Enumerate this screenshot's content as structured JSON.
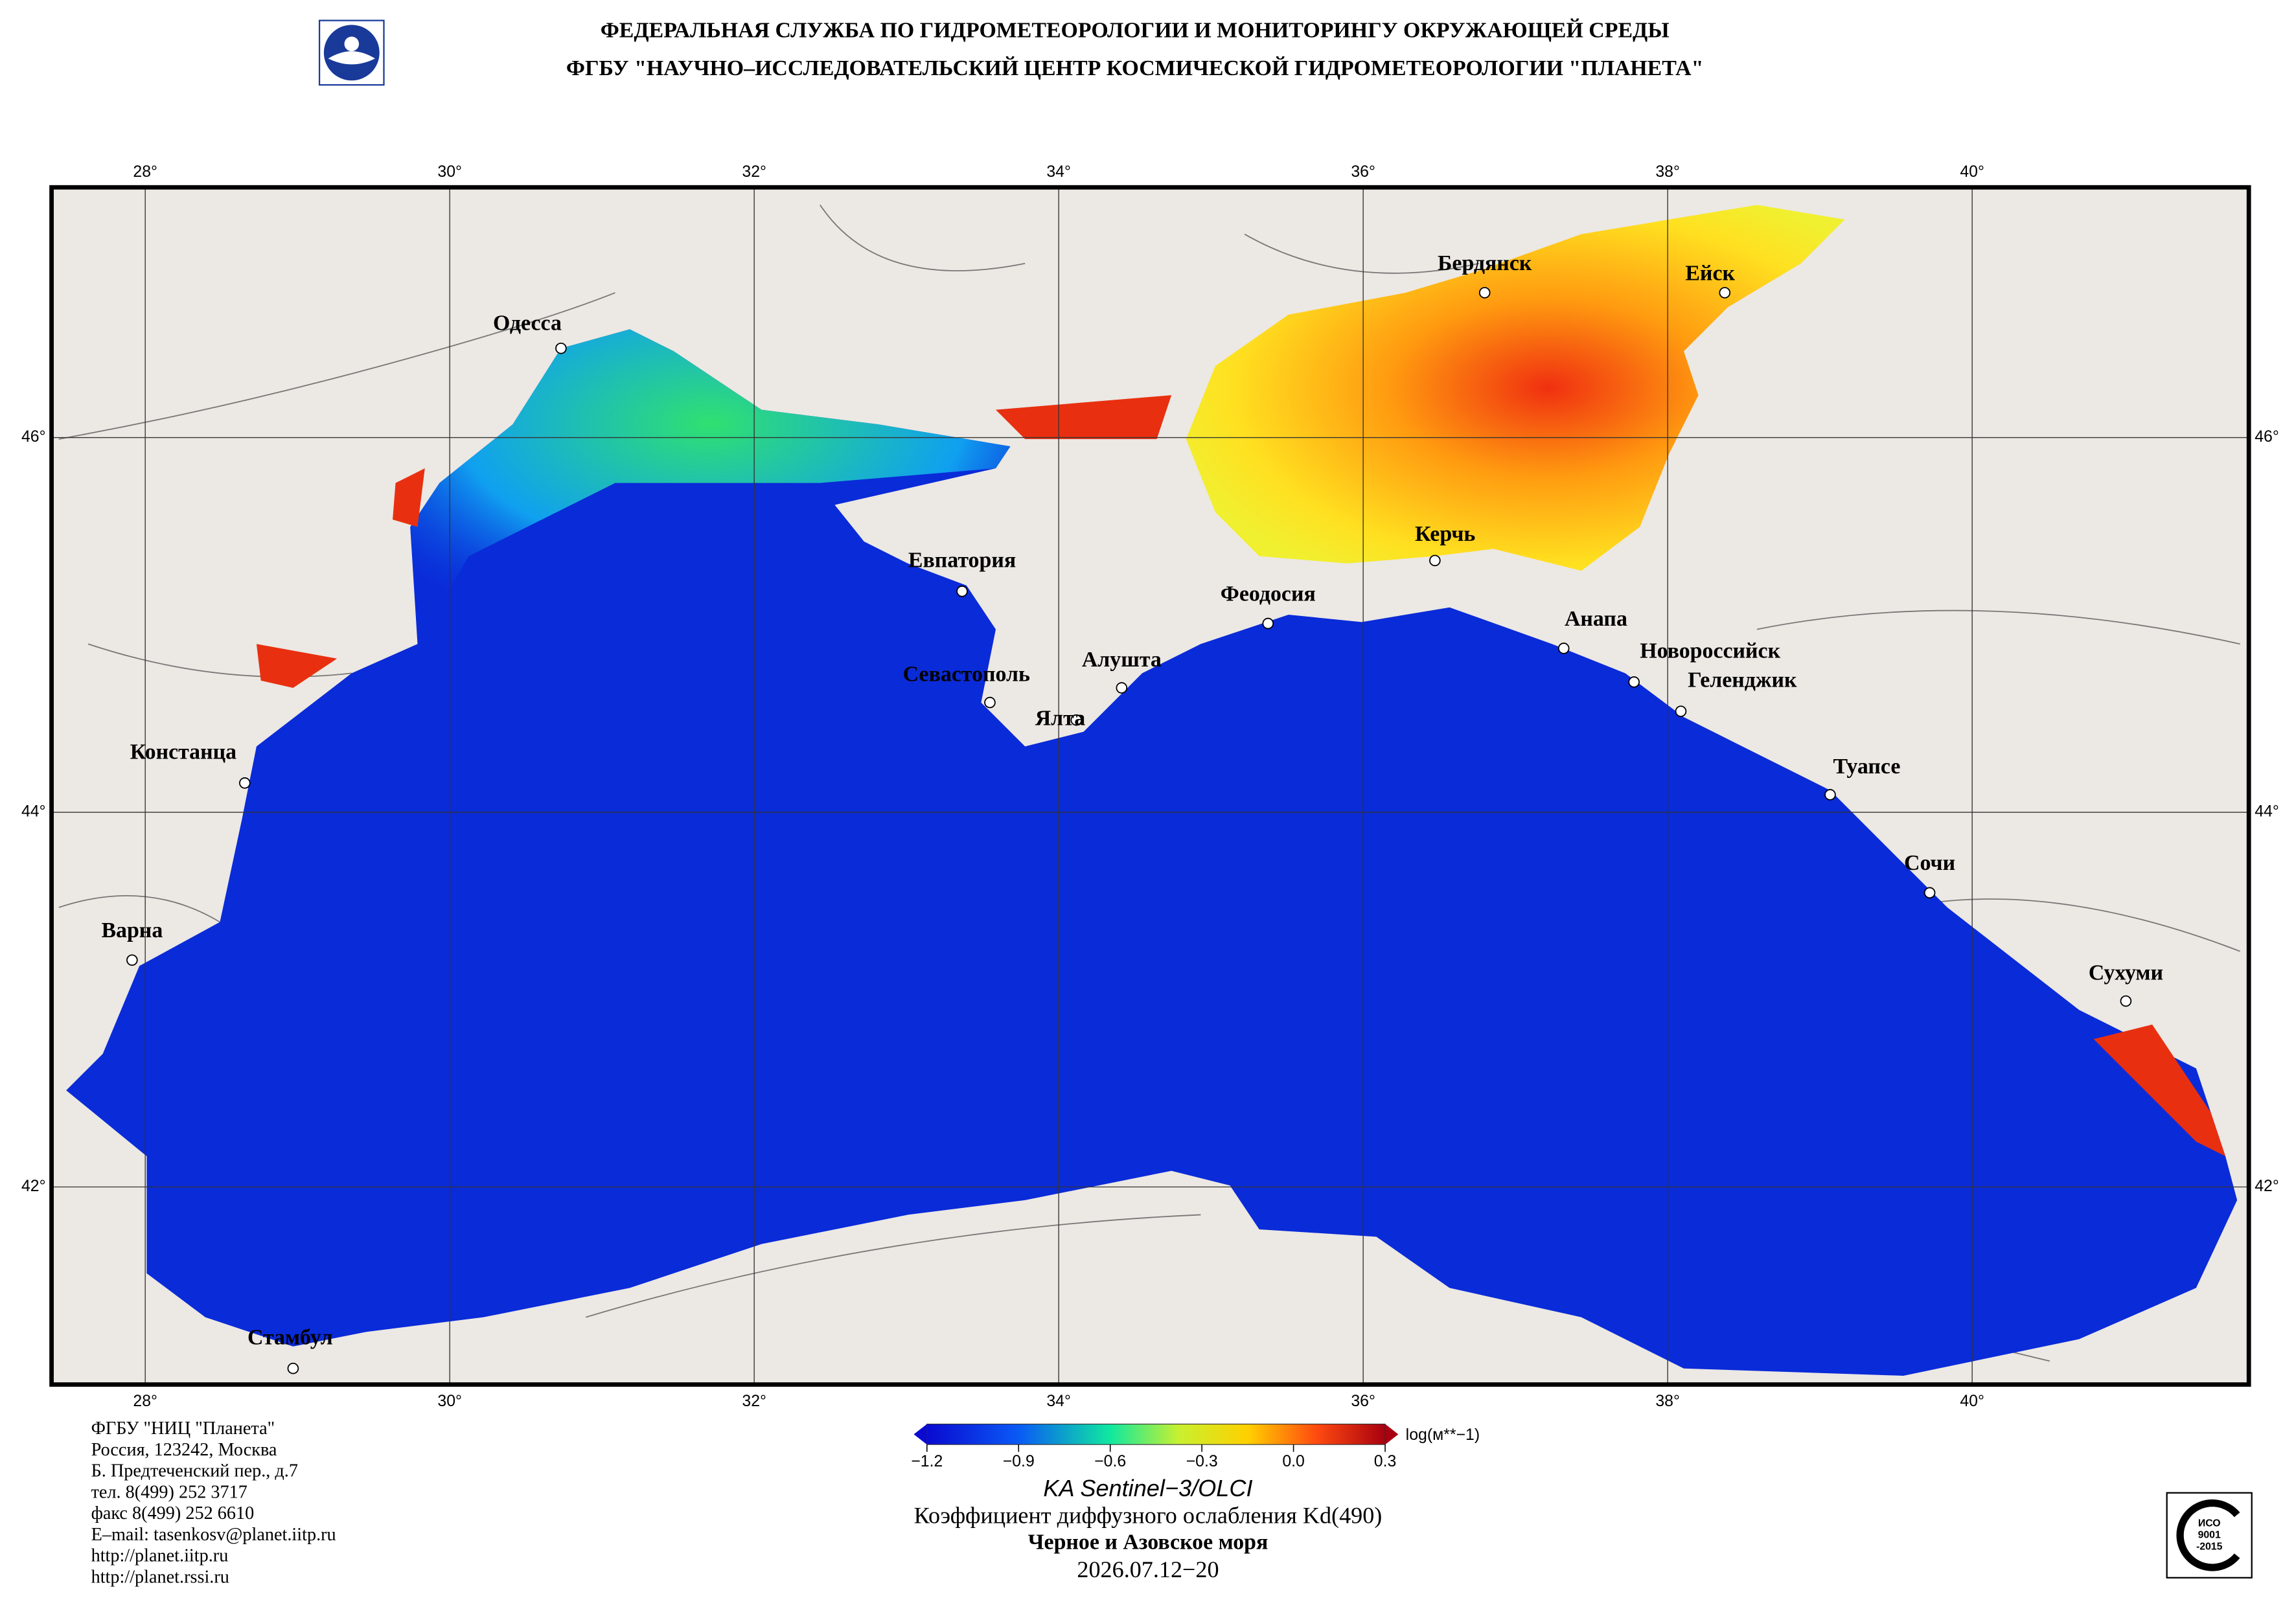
{
  "header": {
    "line1": "ФЕДЕРАЛЬНАЯ СЛУЖБА ПО ГИДРОМЕТЕОРОЛОГИИ И МОНИТОРИНГУ ОКРУЖАЮЩЕЙ СРЕДЫ",
    "line2": "ФГБУ \"НАУЧНО–ИССЛЕДОВАТЕЛЬСКИЙ ЦЕНТР КОСМИЧЕСКОЙ ГИДРОМЕТЕОРОЛОГИИ \"ПЛАНЕТА\""
  },
  "map": {
    "lon_ticks": [
      {
        "value": 28,
        "label": "28°"
      },
      {
        "value": 30,
        "label": "30°"
      },
      {
        "value": 32,
        "label": "32°"
      },
      {
        "value": 34,
        "label": "34°"
      },
      {
        "value": 36,
        "label": "36°"
      },
      {
        "value": 38,
        "label": "38°"
      },
      {
        "value": 40,
        "label": "40°"
      }
    ],
    "lat_ticks": [
      {
        "value": 46,
        "label": "46°"
      },
      {
        "value": 44,
        "label": "44°"
      },
      {
        "value": 42,
        "label": "42°"
      }
    ],
    "cities": [
      "Одесса",
      "Бердянск",
      "Ейск",
      "Евпатория",
      "Керчь",
      "Феодосия",
      "Анапа",
      "Новороссийск",
      "Геленджик",
      "Севастополь",
      "Алушта",
      "Ялта",
      "Констанца",
      "Туапсе",
      "Сочи",
      "Варна",
      "Сухуми",
      "Стамбул"
    ]
  },
  "colorbar": {
    "unit": "log(м**−1)",
    "ticks": [
      {
        "value": -1.2,
        "label": "−1.2"
      },
      {
        "value": -0.9,
        "label": "−0.9"
      },
      {
        "value": -0.6,
        "label": "−0.6"
      },
      {
        "value": -0.3,
        "label": "−0.3"
      },
      {
        "value": 0,
        "label": "0.0"
      },
      0.3
    ],
    "lim": [
      -1.2,
      0.3
    ]
  },
  "footer": {
    "address": [
      "ФГБУ \"НИЦ \"Планета\"",
      "Россия, 123242, Москва",
      "Б. Предтеченский пер., д.7",
      "тел. 8(499) 252 3717",
      "факс 8(499) 252 6610",
      "E–mail: tasenkosv@planet.iitp.ru",
      "http://planet.iitp.ru",
      "http://planet.rssi.ru"
    ],
    "satellite": "KA Sentinel−3/OLCI",
    "product": "Коэффициент диффузного ослабления Kd(490)",
    "region": "Черное и Азовское моря",
    "period": "2026.07.12−20",
    "iso": [
      "ИСО",
      "9001",
      "-2015"
    ]
  }
}
